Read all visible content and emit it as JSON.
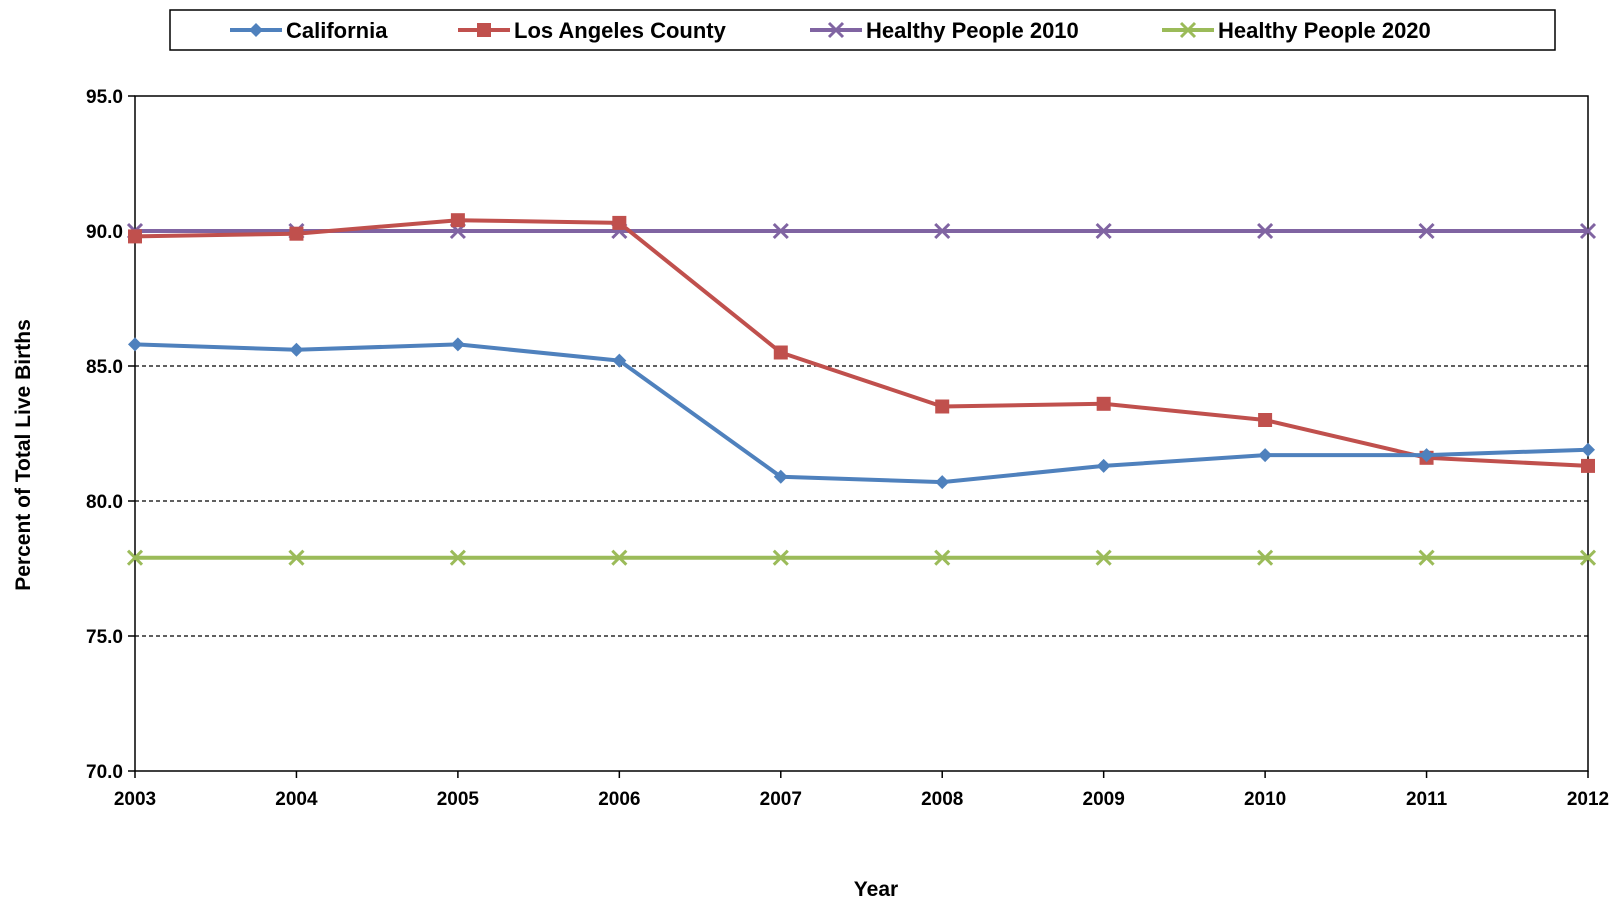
{
  "chart_data": {
    "type": "line",
    "title": "",
    "xlabel": "Year",
    "ylabel": "Percent of Total Live Births",
    "ylim": [
      70.0,
      95.0
    ],
    "yticks": [
      70.0,
      75.0,
      80.0,
      85.0,
      90.0,
      95.0
    ],
    "ytick_labels": [
      "70.0",
      "75.0",
      "80.0",
      "85.0",
      "90.0",
      "95.0"
    ],
    "categories": [
      "2003",
      "2004",
      "2005",
      "2006",
      "2007",
      "2008",
      "2009",
      "2010",
      "2011",
      "2012"
    ],
    "grid": "horizontal dashed",
    "legend_position": "top",
    "series": [
      {
        "name": "California",
        "color": "#4F81BD",
        "marker": "diamond",
        "values": [
          85.8,
          85.6,
          85.8,
          85.2,
          80.9,
          80.7,
          81.3,
          81.7,
          81.7,
          81.9
        ]
      },
      {
        "name": "Los Angeles County",
        "color": "#C0504D",
        "marker": "square",
        "values": [
          89.8,
          89.9,
          90.4,
          90.3,
          85.5,
          83.5,
          83.6,
          83.0,
          81.6,
          81.3
        ]
      },
      {
        "name": "Healthy People 2010",
        "color": "#8064A2",
        "marker": "x",
        "values": [
          90.0,
          90.0,
          90.0,
          90.0,
          90.0,
          90.0,
          90.0,
          90.0,
          90.0,
          90.0
        ]
      },
      {
        "name": "Healthy People 2020",
        "color": "#9BBB59",
        "marker": "x",
        "values": [
          77.9,
          77.9,
          77.9,
          77.9,
          77.9,
          77.9,
          77.9,
          77.9,
          77.9,
          77.9
        ]
      }
    ]
  }
}
